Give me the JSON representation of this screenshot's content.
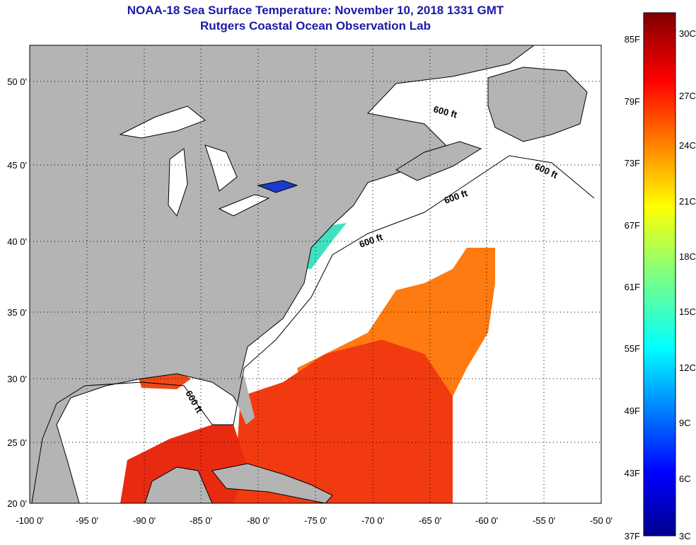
{
  "title": "NOAA-18 Sea Surface Temperature:  November 10, 2018 1331 GMT",
  "subtitle": "Rutgers Coastal Ocean Observation Lab",
  "map": {
    "lat_ticks": [
      "50 0'",
      "45 0'",
      "40 0'",
      "35 0'",
      "30 0'",
      "25 0'",
      "20 0'"
    ],
    "lon_ticks": [
      "-100 0'",
      "-95 0'",
      "-90 0'",
      "-85 0'",
      "-80 0'",
      "-75 0'",
      "-70 0'",
      "-65 0'",
      "-60 0'",
      "-55 0'",
      "-50 0'"
    ],
    "contour_labels": [
      "600 ft",
      "600 ft",
      "600 ft",
      "600 ft",
      "600 ft"
    ],
    "land_color": "#b4b4b4",
    "no_data_color": "#ffffff"
  },
  "colorbar": {
    "fahrenheit_ticks": [
      "85F",
      "79F",
      "73F",
      "67F",
      "61F",
      "55F",
      "49F",
      "43F",
      "37F"
    ],
    "celsius_ticks": [
      "30C",
      "27C",
      "24C",
      "21C",
      "18C",
      "15C",
      "12C",
      "9C",
      "6C",
      "3C"
    ],
    "range_c": [
      3,
      31
    ]
  }
}
